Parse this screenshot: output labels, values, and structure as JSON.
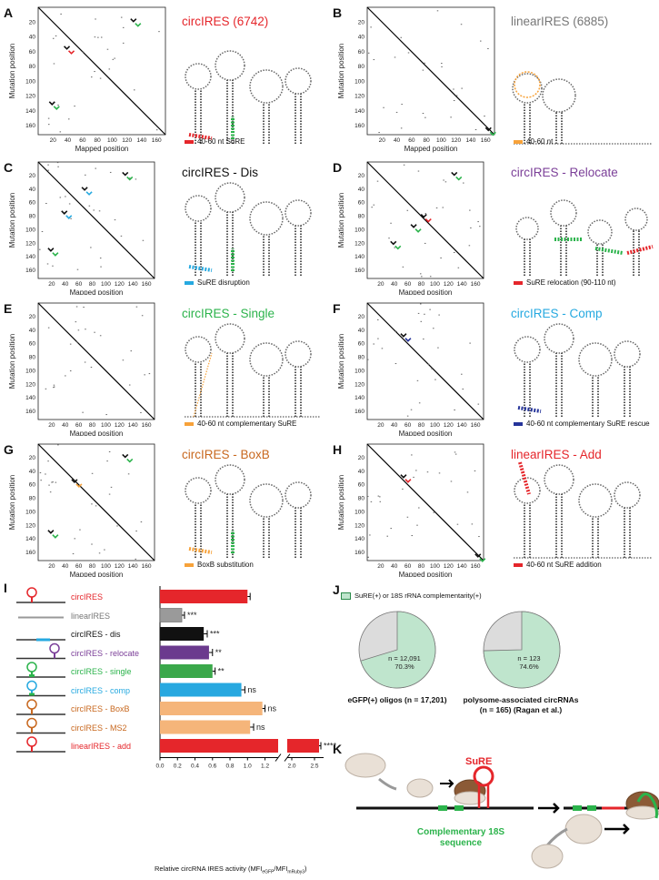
{
  "colors": {
    "red": "#e5262b",
    "gray": "#777777",
    "black": "#111111",
    "purple": "#7b3f98",
    "green": "#2bb34b",
    "cyan": "#26a9e0",
    "orange": "#c8681f",
    "blue": "#25349a",
    "lightgreen": "#bfe5cd",
    "lightgray": "#dcdcdc"
  },
  "common": {
    "xlabel": "Mapped position",
    "ylabel": "Mutation position",
    "ticks": [
      "20",
      "40",
      "60",
      "80",
      "100",
      "120",
      "140",
      "160"
    ]
  },
  "panels": [
    {
      "letter": "A",
      "title": "circIRES (6742)",
      "title_color": "#e5262b",
      "legend": "40-60 nt SuRE",
      "legend_color": "#e5262b"
    },
    {
      "letter": "B",
      "title": "linearIRES (6885)",
      "title_color": "#777777",
      "legend": "40-60 nt",
      "legend_color": "#f7a23a"
    },
    {
      "letter": "C",
      "title": "circIRES - Dis",
      "title_color": "#111111",
      "legend": "SuRE disruption",
      "legend_color": "#26a9e0"
    },
    {
      "letter": "D",
      "title": "circIRES - Relocate",
      "title_color": "#7b3f98",
      "legend": "SuRE relocation (90-110 nt)",
      "legend_color": "#e5262b"
    },
    {
      "letter": "E",
      "title": "circIRES - Single",
      "title_color": "#2bb34b",
      "legend": "40-60 nt complementary SuRE",
      "legend_color": "#f7a23a"
    },
    {
      "letter": "F",
      "title": "circIRES - Comp",
      "title_color": "#26a9e0",
      "legend": "40-60 nt complementary SuRE rescue",
      "legend_color": "#25349a"
    },
    {
      "letter": "G",
      "title": "circIRES - BoxB",
      "title_color": "#c8681f",
      "legend": "BoxB substitution",
      "legend_color": "#f7a23a"
    },
    {
      "letter": "H",
      "title": "linearIRES - Add",
      "title_color": "#e5262b",
      "legend": "40-60 nt SuRE addition",
      "legend_color": "#e5262b"
    }
  ],
  "panel_I": {
    "letter": "I",
    "xlabel": "Relative circRNA IRES activity (MFI",
    "xlabel_sub1": "eGFP",
    "xlabel_mid": "/MFI",
    "xlabel_sub2": "mRuby3",
    "xlabel_end": ")",
    "ticks": [
      "0.0",
      "0.2",
      "0.4",
      "0.6",
      "0.8",
      "1.0",
      "1.2",
      "2.0",
      "2.5"
    ]
  },
  "chart_data": {
    "type": "bar",
    "categories": [
      "circIRES",
      "linearIRES",
      "circIRES - dis",
      "circIRES - relocate",
      "circIRES - single",
      "circIRES - comp",
      "circIRES - BoxB",
      "circIRES - MS2",
      "linearIRES - add"
    ],
    "values": [
      1.0,
      0.25,
      0.5,
      0.56,
      0.6,
      0.93,
      1.17,
      1.03,
      2.6
    ],
    "errors": [
      0.03,
      0.03,
      0.04,
      0.04,
      0.03,
      0.04,
      0.03,
      0.04,
      0.04
    ],
    "significance": [
      "",
      "***",
      "***",
      "**",
      "**",
      "ns",
      "ns",
      "ns",
      "****"
    ],
    "label_colors": [
      "#e5262b",
      "#777777",
      "#111111",
      "#7b3f98",
      "#2bb34b",
      "#26a9e0",
      "#c8681f",
      "#c8681f",
      "#e5262b"
    ],
    "bar_colors": [
      "#e5262b",
      "#9a9a9a",
      "#111111",
      "#6b3a8e",
      "#3aa84a",
      "#27a8e0",
      "#f5b57a",
      "#f5b57a",
      "#e5262b"
    ],
    "xlabel": "Relative circRNA IRES activity (MFIeGFP/MFImRuby3)",
    "ylabel": "",
    "xlim": [
      0,
      2.7
    ],
    "axis_break": [
      1.35,
      1.9
    ]
  },
  "panel_J": {
    "letter": "J",
    "legend": "SuRE(+) or 18S rRNA complementarity(+)",
    "pies": [
      {
        "n": "n = 12,091",
        "pct": "70.3%",
        "fraction": 0.703,
        "caption": "eGFP(+) oligos (n = 17,201)"
      },
      {
        "n": "n = 123",
        "pct": "74.6%",
        "fraction": 0.746,
        "caption": "polysome-associated circRNAs",
        "caption2": "(n = 165) (Ragan et al.)"
      }
    ]
  },
  "panel_K": {
    "letter": "K",
    "sure_label": "SuRE",
    "comp_label1": "Complementary 18S",
    "comp_label2": "sequence"
  }
}
